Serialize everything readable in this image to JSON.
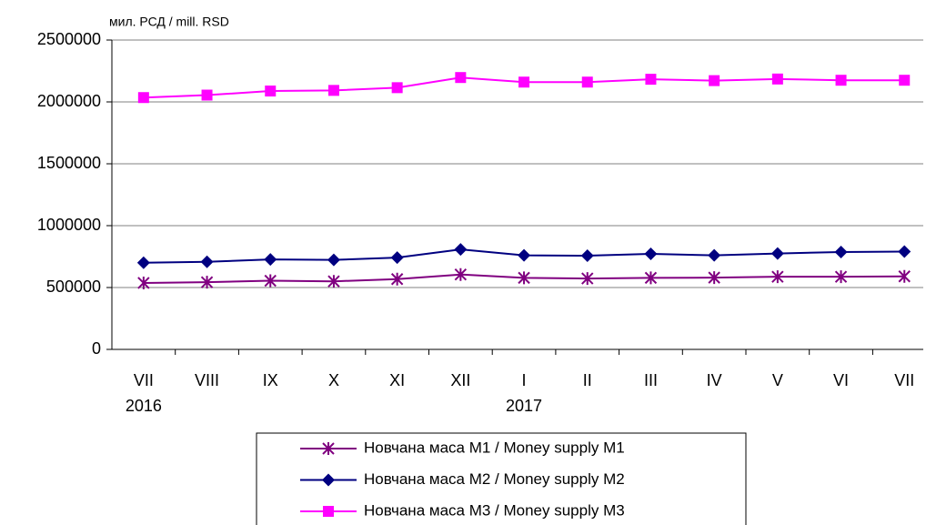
{
  "chart_data": {
    "type": "line",
    "unit_label": "мил. РСД / mill. RSD",
    "categories": [
      "VII",
      "VIII",
      "IX",
      "X",
      "XI",
      "XII",
      "I",
      "II",
      "III",
      "IV",
      "V",
      "VI",
      "VII"
    ],
    "years": [
      "2016",
      null,
      null,
      null,
      null,
      null,
      "2017",
      null,
      null,
      null,
      null,
      null,
      null
    ],
    "series": [
      {
        "name": "Новчана маса М1 / Money supply M1",
        "color": "#800080",
        "marker": "asterisk",
        "values": [
          537000,
          543000,
          555000,
          550000,
          568000,
          605000,
          578000,
          573000,
          578000,
          580000,
          587000,
          587000,
          590000
        ]
      },
      {
        "name": "Новчана маса М2 / Money supply M2",
        "color": "#000080",
        "marker": "diamond",
        "values": [
          700000,
          708000,
          727000,
          723000,
          742000,
          808000,
          760000,
          757000,
          772000,
          760000,
          775000,
          787000,
          790000
        ]
      },
      {
        "name": "Новчана маса М3 / Money supply M3",
        "color": "#ff00ff",
        "marker": "square",
        "values": [
          2035000,
          2055000,
          2088000,
          2093000,
          2115000,
          2197000,
          2160000,
          2160000,
          2183000,
          2172000,
          2185000,
          2175000,
          2175000
        ]
      }
    ],
    "ylim": [
      0,
      2500000
    ],
    "yticks": [
      0,
      500000,
      1000000,
      1500000,
      2000000,
      2500000
    ],
    "grid": true
  }
}
